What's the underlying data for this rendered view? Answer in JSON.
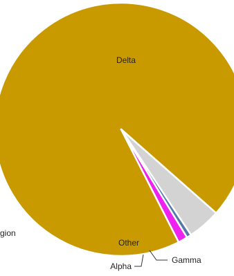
{
  "chart_data": {
    "type": "pie",
    "title": "",
    "slices": [
      {
        "label": "Delta",
        "value": 94.0,
        "color": "#c89a00"
      },
      {
        "label": "Gamma",
        "value": 1.2,
        "color": "#ee22ee"
      },
      {
        "label": "Alpha",
        "value": 0.6,
        "color": "#5577aa"
      },
      {
        "label": "Other",
        "value": 4.2,
        "color": "#d3d3d3"
      }
    ],
    "cropped_label_fragment": "gion",
    "legend": "none"
  }
}
